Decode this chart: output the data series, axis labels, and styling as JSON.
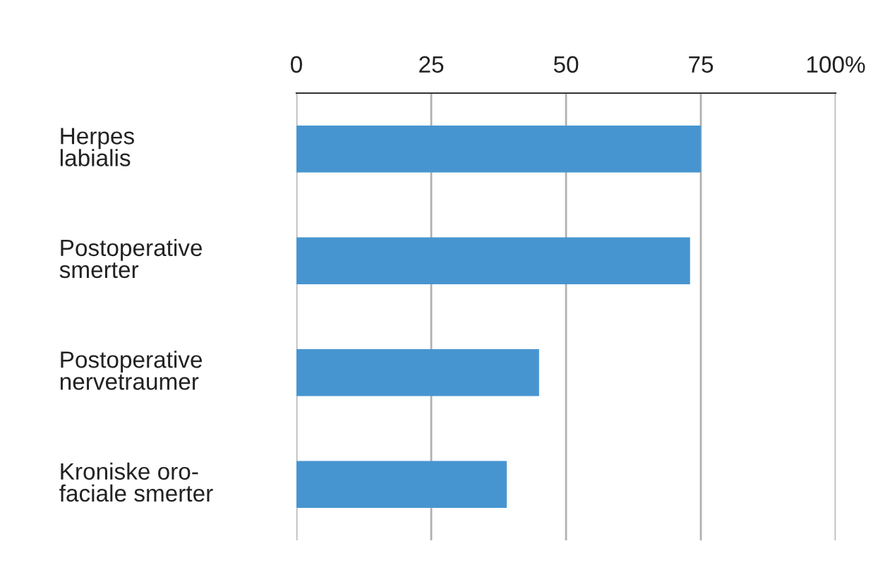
{
  "chart_data": {
    "type": "bar",
    "orientation": "horizontal",
    "categories": [
      "Herpes\nlabialis",
      "Postoperative\nsmerter",
      "Postoperative\nnervetraumer",
      "Kroniske oro-\nfaciale smerter"
    ],
    "values": [
      75,
      73,
      45,
      39
    ],
    "color": "#4795d0",
    "xlim": [
      0,
      100
    ],
    "xticks": [
      0,
      25,
      50,
      75,
      {
        "value": 100,
        "label": "100%"
      }
    ],
    "grid": "x"
  }
}
